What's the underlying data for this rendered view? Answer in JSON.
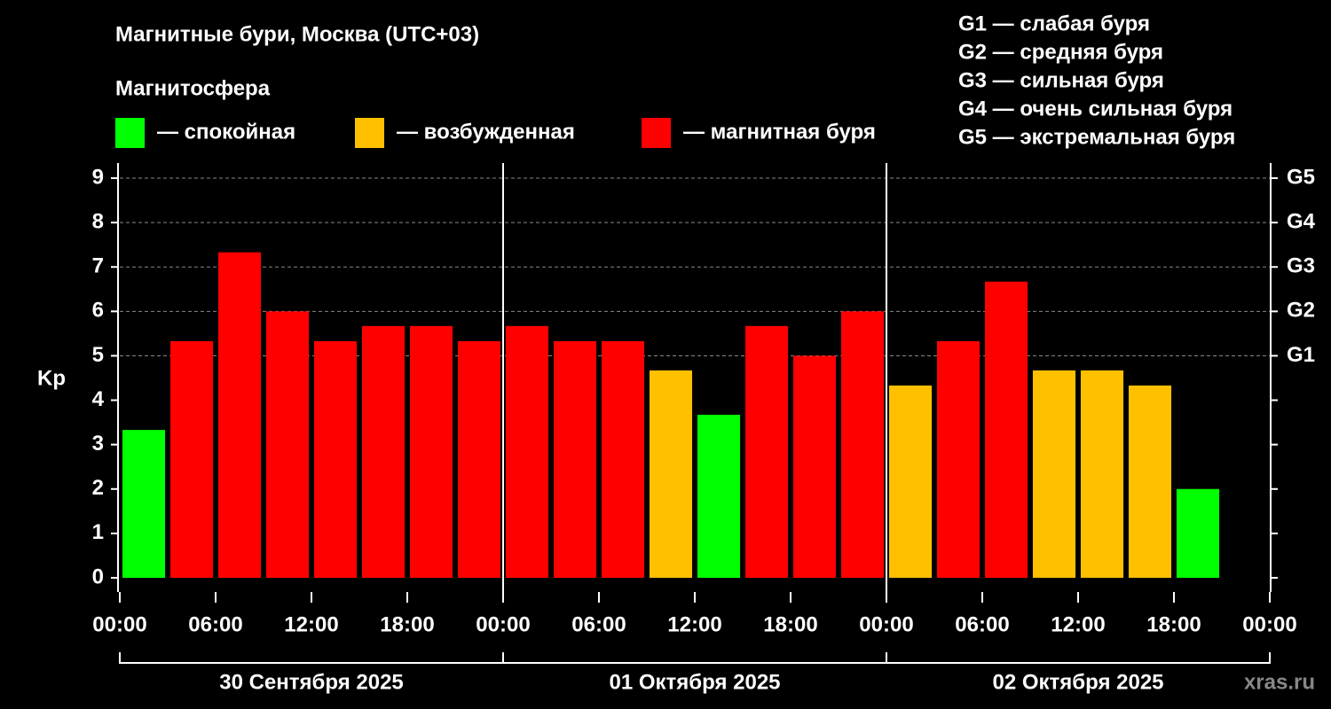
{
  "chart_data": {
    "type": "bar",
    "title": "Магнитные бури, Москва (UTC+03)",
    "subtitle": "Магнитосфера",
    "legend": [
      {
        "name": "— спокойная",
        "color": "#00ff00"
      },
      {
        "name": "— возбужденная",
        "color": "#ffc000"
      },
      {
        "name": "— магнитная буря",
        "color": "#ff0000"
      }
    ],
    "storm_levels": [
      "G1 — слабая буря",
      "G2 — средняя буря",
      "G3 — сильная буря",
      "G4 — очень сильная буря",
      "G5 — экстремальная буря"
    ],
    "ylabel": "Kp",
    "x": [
      1.5,
      4.5,
      7.5,
      10.5,
      13.5,
      16.5,
      19.5,
      22.5,
      25.5,
      28.5,
      31.5,
      34.5,
      37.5,
      40.5,
      43.5,
      46.5,
      49.5,
      52.5,
      55.5,
      58.5,
      61.5,
      64.5,
      67.5
    ],
    "values": [
      3.33,
      5.33,
      7.33,
      6,
      5.33,
      5.67,
      5.67,
      5.33,
      5.67,
      5.33,
      5.33,
      4.67,
      3.67,
      5.67,
      5,
      6,
      4.33,
      5.33,
      6.67,
      4.67,
      4.67,
      4.33,
      2
    ],
    "colors": [
      "#00ff00",
      "#ff0000",
      "#ff0000",
      "#ff0000",
      "#ff0000",
      "#ff0000",
      "#ff0000",
      "#ff0000",
      "#ff0000",
      "#ff0000",
      "#ff0000",
      "#ffc000",
      "#00ff00",
      "#ff0000",
      "#ff0000",
      "#ff0000",
      "#ffc000",
      "#ff0000",
      "#ff0000",
      "#ffc000",
      "#ffc000",
      "#ffc000",
      "#00ff00"
    ],
    "xlim": [
      0,
      72
    ],
    "xticks": [
      {
        "value": 0,
        "label": "00:00"
      },
      {
        "value": 6,
        "label": "06:00"
      },
      {
        "value": 12,
        "label": "12:00"
      },
      {
        "value": 18,
        "label": "18:00"
      },
      {
        "value": 24,
        "label": "00:00"
      },
      {
        "value": 30,
        "label": "06:00"
      },
      {
        "value": 36,
        "label": "12:00"
      },
      {
        "value": 42,
        "label": "18:00"
      },
      {
        "value": 48,
        "label": "00:00"
      },
      {
        "value": 54,
        "label": "06:00"
      },
      {
        "value": 60,
        "label": "12:00"
      },
      {
        "value": 66,
        "label": "18:00"
      },
      {
        "value": 72,
        "label": "00:00"
      }
    ],
    "ylim": [
      -0.32,
      9.34
    ],
    "yticks": [
      0,
      1,
      2,
      3,
      4,
      5,
      6,
      7,
      8,
      9
    ],
    "y2ticks": [
      {
        "value": 5,
        "label": "G1"
      },
      {
        "value": 6,
        "label": "G2"
      },
      {
        "value": 7,
        "label": "G3"
      },
      {
        "value": 8,
        "label": "G4"
      },
      {
        "value": 9,
        "label": "G5"
      }
    ],
    "days": [
      "30 Сентября 2025",
      "01 Октября 2025",
      "02 Октября 2025"
    ],
    "watermark": "xras.ru"
  }
}
